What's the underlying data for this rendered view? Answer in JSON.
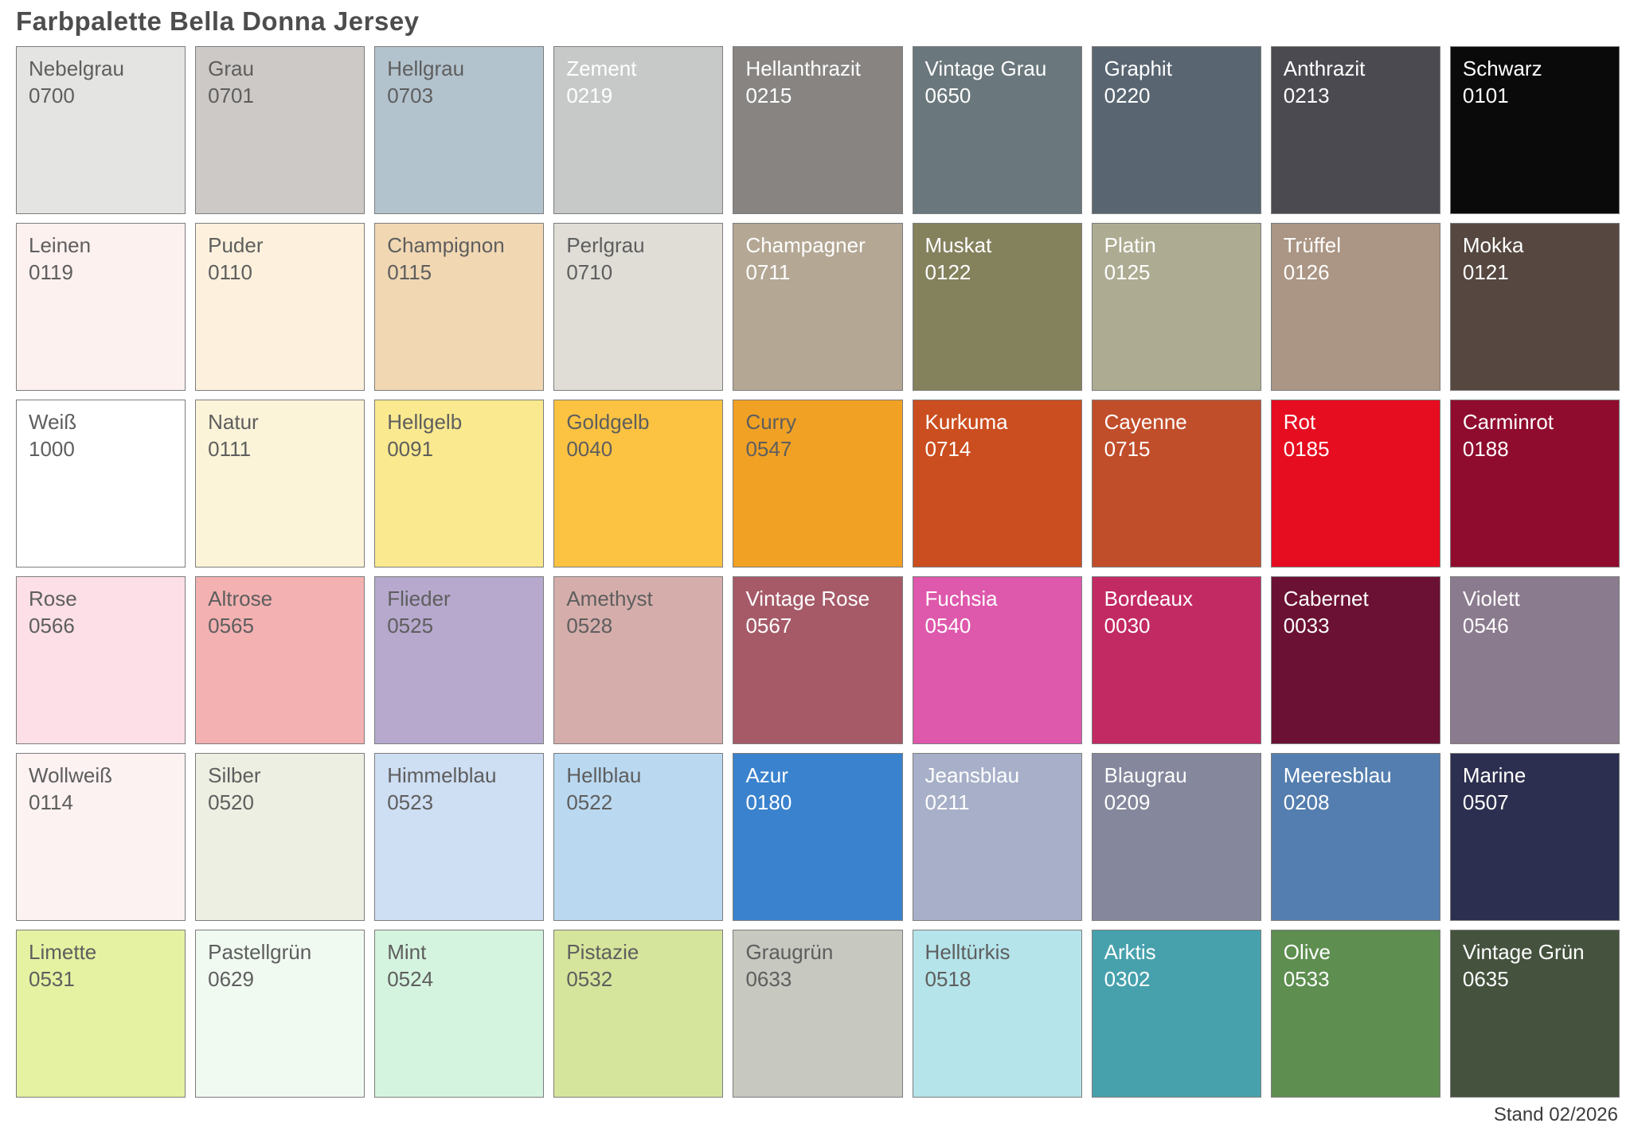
{
  "page": {
    "title": "Farbpalette Bella Donna Jersey",
    "footer": "Stand 02/2026"
  },
  "palette": {
    "rows": 6,
    "cols": 9,
    "label_colors": {
      "dark": "#5e5e5e",
      "light": "#ffffff"
    },
    "swatches": [
      {
        "name": "Nebelgrau",
        "code": "0700",
        "color": "#e4e4e2",
        "text": "dark"
      },
      {
        "name": "Grau",
        "code": "0701",
        "color": "#cdc9c6",
        "text": "dark"
      },
      {
        "name": "Hellgrau",
        "code": "0703",
        "color": "#b3c3ce",
        "text": "dark"
      },
      {
        "name": "Zement",
        "code": "0219",
        "color": "#c6c9c8",
        "text": "light"
      },
      {
        "name": "Hellanthrazit",
        "code": "0215",
        "color": "#878482",
        "text": "light"
      },
      {
        "name": "Vintage Grau",
        "code": "0650",
        "color": "#6a777c",
        "text": "light"
      },
      {
        "name": "Graphit",
        "code": "0220",
        "color": "#596672",
        "text": "light"
      },
      {
        "name": "Anthrazit",
        "code": "0213",
        "color": "#4c4a51",
        "text": "light"
      },
      {
        "name": "Schwarz",
        "code": "0101",
        "color": "#0b0a0b",
        "text": "light"
      },
      {
        "name": "Leinen",
        "code": "0119",
        "color": "#fdf1ef",
        "text": "dark"
      },
      {
        "name": "Puder",
        "code": "0110",
        "color": "#fdf1dd",
        "text": "dark"
      },
      {
        "name": "Champignon",
        "code": "0115",
        "color": "#f1d8b3",
        "text": "dark"
      },
      {
        "name": "Perlgrau",
        "code": "0710",
        "color": "#dfddd6",
        "text": "dark"
      },
      {
        "name": "Champagner",
        "code": "0711",
        "color": "#b4a794",
        "text": "light"
      },
      {
        "name": "Muskat",
        "code": "0122",
        "color": "#84815d",
        "text": "light"
      },
      {
        "name": "Platin",
        "code": "0125",
        "color": "#adac92",
        "text": "light"
      },
      {
        "name": "Trüffel",
        "code": "0126",
        "color": "#ab9584",
        "text": "light"
      },
      {
        "name": "Mokka",
        "code": "0121",
        "color": "#564840",
        "text": "light"
      },
      {
        "name": "Weiß",
        "code": "1000",
        "color": "#ffffff",
        "text": "dark"
      },
      {
        "name": "Natur",
        "code": "0111",
        "color": "#fcf4d9",
        "text": "dark"
      },
      {
        "name": "Hellgelb",
        "code": "0091",
        "color": "#fae98f",
        "text": "dark"
      },
      {
        "name": "Goldgelb",
        "code": "0040",
        "color": "#fcc342",
        "text": "dark"
      },
      {
        "name": "Curry",
        "code": "0547",
        "color": "#f1a124",
        "text": "dark"
      },
      {
        "name": "Kurkuma",
        "code": "0714",
        "color": "#cb4e20",
        "text": "light"
      },
      {
        "name": "Cayenne",
        "code": "0715",
        "color": "#c14e2b",
        "text": "light"
      },
      {
        "name": "Rot",
        "code": "0185",
        "color": "#e60d20",
        "text": "light"
      },
      {
        "name": "Carminrot",
        "code": "0188",
        "color": "#8f0c2f",
        "text": "light"
      },
      {
        "name": "Rose",
        "code": "0566",
        "color": "#fcdfe7",
        "text": "dark"
      },
      {
        "name": "Altrose",
        "code": "0565",
        "color": "#f3b1b2",
        "text": "dark"
      },
      {
        "name": "Flieder",
        "code": "0525",
        "color": "#b6a9cd",
        "text": "dark"
      },
      {
        "name": "Amethyst",
        "code": "0528",
        "color": "#d5aeac",
        "text": "dark"
      },
      {
        "name": "Vintage Rose",
        "code": "0567",
        "color": "#a65a68",
        "text": "light"
      },
      {
        "name": "Fuchsia",
        "code": "0540",
        "color": "#de58ac",
        "text": "light"
      },
      {
        "name": "Bordeaux",
        "code": "0030",
        "color": "#c22a63",
        "text": "light"
      },
      {
        "name": "Cabernet",
        "code": "0033",
        "color": "#6b1133",
        "text": "light"
      },
      {
        "name": "Violett",
        "code": "0546",
        "color": "#8b7b8e",
        "text": "light"
      },
      {
        "name": "Wollweiß",
        "code": "0114",
        "color": "#fbf2f1",
        "text": "dark"
      },
      {
        "name": "Silber",
        "code": "0520",
        "color": "#edefe2",
        "text": "dark"
      },
      {
        "name": "Himmelblau",
        "code": "0523",
        "color": "#cedef3",
        "text": "dark"
      },
      {
        "name": "Hellblau",
        "code": "0522",
        "color": "#bad9f1",
        "text": "dark"
      },
      {
        "name": "Azur",
        "code": "0180",
        "color": "#3a82cd",
        "text": "light"
      },
      {
        "name": "Jeansblau",
        "code": "0211",
        "color": "#a7b0c8",
        "text": "light"
      },
      {
        "name": "Blaugrau",
        "code": "0209",
        "color": "#85879c",
        "text": "light"
      },
      {
        "name": "Meeresblau",
        "code": "0208",
        "color": "#547eaf",
        "text": "light"
      },
      {
        "name": "Marine",
        "code": "0507",
        "color": "#2c2f4f",
        "text": "light"
      },
      {
        "name": "Limette",
        "code": "0531",
        "color": "#e4f2a2",
        "text": "dark"
      },
      {
        "name": "Pastellgrün",
        "code": "0629",
        "color": "#f0faf1",
        "text": "dark"
      },
      {
        "name": "Mint",
        "code": "0524",
        "color": "#d5f4df",
        "text": "dark"
      },
      {
        "name": "Pistazie",
        "code": "0532",
        "color": "#d6e59c",
        "text": "dark"
      },
      {
        "name": "Graugrün",
        "code": "0633",
        "color": "#c7c8bf",
        "text": "dark"
      },
      {
        "name": "Helltürkis",
        "code": "0518",
        "color": "#b5e4ea",
        "text": "dark"
      },
      {
        "name": "Arktis",
        "code": "0302",
        "color": "#47a1ad",
        "text": "light"
      },
      {
        "name": "Olive",
        "code": "0533",
        "color": "#5e8e50",
        "text": "light"
      },
      {
        "name": "Vintage Grün",
        "code": "0635",
        "color": "#44523e",
        "text": "light"
      }
    ]
  }
}
